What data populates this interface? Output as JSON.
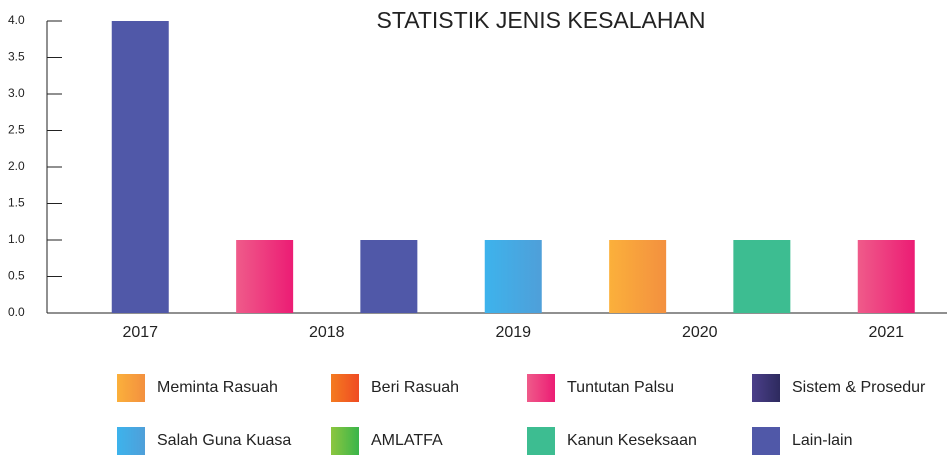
{
  "chart_data": {
    "type": "bar",
    "title": "STATISTIK JENIS KESALAHAN",
    "x": [
      2017,
      2017.667,
      2018.333,
      2019,
      2019.667,
      2020.333,
      2021
    ],
    "values": [
      4,
      1,
      1,
      1,
      1,
      1,
      1
    ],
    "colors": [
      [
        "#5058a8",
        "#5058a8"
      ],
      [
        "#ef5b8a",
        "#ec1c74"
      ],
      [
        "#5058a8",
        "#5058a8"
      ],
      [
        "#3db3ec",
        "#4f9fd9"
      ],
      [
        "#fbb03b",
        "#f3903f"
      ],
      [
        "#3dbd91",
        "#3dbd91"
      ],
      [
        "#ef5b8a",
        "#ec1c74"
      ]
    ],
    "xlim": [
      2016.5,
      2021.5
    ],
    "xticks": [
      2017,
      2018,
      2019,
      2020,
      2021
    ],
    "ylim": [
      0,
      4
    ],
    "yticks": [
      {
        "value": 0,
        "label": "0.0"
      },
      0.5,
      {
        "value": 1,
        "label": "1.0"
      },
      1.5,
      {
        "value": 2,
        "label": "2.0"
      },
      2.5,
      {
        "value": 3,
        "label": "3.0"
      },
      3.5,
      {
        "value": 4,
        "label": "4.0"
      }
    ],
    "legend": [
      {
        "name": "Meminta Rasuah",
        "color": [
          "#fbb03b",
          "#f3903f"
        ]
      },
      {
        "name": "Beri Rasuah",
        "color": [
          "#f47b20",
          "#ef4b23"
        ]
      },
      {
        "name": "Tuntutan Palsu",
        "color": [
          "#ef5b8a",
          "#ec1c74"
        ]
      },
      {
        "name": "Sistem & Prosedur",
        "color": [
          "#4b3f8a",
          "#2d2a5e"
        ]
      },
      {
        "name": "Salah Guna Kuasa",
        "color": [
          "#3db3ec",
          "#4f9fd9"
        ]
      },
      {
        "name": "AMLATFA",
        "color": [
          "#8dc63f",
          "#39b54a"
        ]
      },
      {
        "name": "Kanun Keseksaan",
        "color": [
          "#3dbd91",
          "#3dbd91"
        ]
      },
      {
        "name": "Lain-lain",
        "color": [
          "#5058a8",
          "#5058a8"
        ]
      }
    ]
  }
}
